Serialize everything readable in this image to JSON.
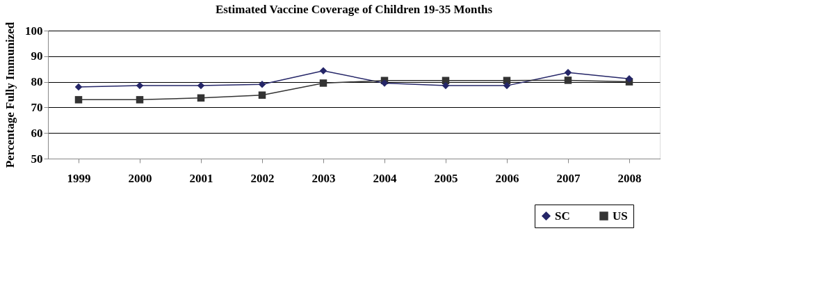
{
  "chart_data": {
    "type": "line",
    "title": "Estimated Vaccine Coverage of Children 19-35 Months",
    "ylabel": "Percentage Fully Immunized",
    "categories": [
      "1999",
      "2000",
      "2001",
      "2002",
      "2003",
      "2004",
      "2005",
      "2006",
      "2007",
      "2008"
    ],
    "series": [
      {
        "name": "SC",
        "color": "#252668",
        "marker": "diamond",
        "values": [
          78,
          78.5,
          78.5,
          79,
          84.3,
          79.5,
          78.5,
          78.5,
          83.6,
          81.2
        ]
      },
      {
        "name": "US",
        "color": "#333333",
        "marker": "square",
        "values": [
          73,
          73,
          73.7,
          74.8,
          79.5,
          80.5,
          80.5,
          80.5,
          80.6,
          80
        ]
      }
    ],
    "ylim": [
      50,
      100
    ],
    "yticks": [
      50,
      60,
      70,
      80,
      90,
      100
    ],
    "grid": "y",
    "legend": "bottom right",
    "line_style": "solid"
  }
}
